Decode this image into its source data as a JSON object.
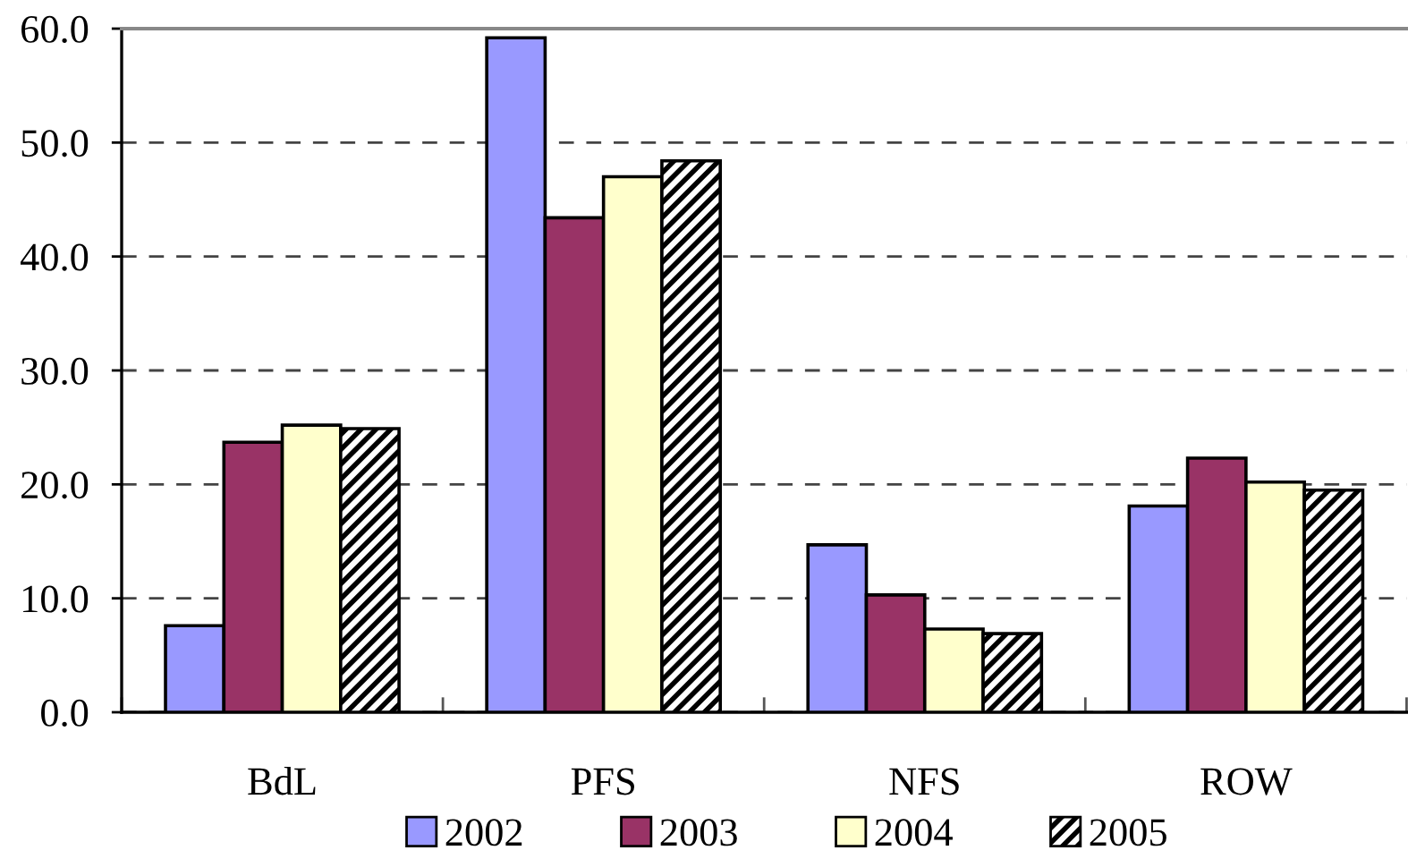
{
  "chart_data": {
    "type": "bar",
    "categories": [
      "BdL",
      "PFS",
      "NFS",
      "ROW"
    ],
    "series": [
      {
        "name": "2002",
        "color": "#9999ff",
        "values": [
          7.6,
          59.2,
          14.7,
          18.1
        ]
      },
      {
        "name": "2003",
        "color": "#993366",
        "values": [
          23.7,
          43.4,
          10.3,
          22.3
        ]
      },
      {
        "name": "2004",
        "color": "#ffffcc",
        "values": [
          25.2,
          47.0,
          7.3,
          20.2
        ]
      },
      {
        "name": "2005",
        "color": "#000000",
        "values": [
          24.9,
          48.4,
          6.9,
          19.5
        ]
      }
    ],
    "ylim": [
      0,
      60
    ],
    "yticks": [
      {
        "value": 0,
        "label": "0.0"
      },
      {
        "value": 10,
        "label": "10.0"
      },
      {
        "value": 20,
        "label": "20.0"
      },
      {
        "value": 30,
        "label": "30.0"
      },
      {
        "value": 40,
        "label": "40.0"
      },
      {
        "value": 50,
        "label": "50.0"
      },
      {
        "value": 60,
        "label": "60.0"
      }
    ],
    "grid": "y",
    "line_style": "dashed",
    "legend": "bottom"
  }
}
